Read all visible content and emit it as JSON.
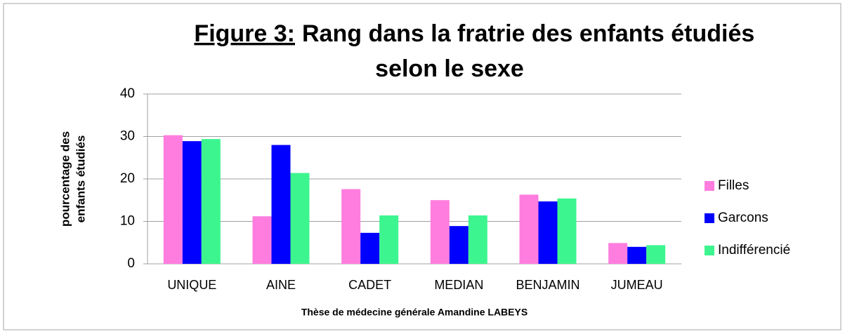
{
  "chart_data": {
    "type": "bar",
    "title_label": "Figure 3:",
    "title": [
      "Rang dans la fratrie des enfants étudiés",
      "selon le sexe"
    ],
    "y_label": [
      "pourcentage des",
      "enfants étudiés"
    ],
    "x_label": "Thèse de médecine générale Amandine LABEYS",
    "categories": [
      "UNIQUE",
      "AINE",
      "CADET",
      "MEDIAN",
      "BENJAMIN",
      "JUMEAU"
    ],
    "series": [
      {
        "name": "Filles",
        "color": "#ff7ddf",
        "values": [
          30.3,
          11.2,
          17.6,
          15.0,
          16.3,
          4.9
        ]
      },
      {
        "name": "Garcons",
        "color": "#0000ff",
        "values": [
          28.9,
          28.0,
          7.3,
          8.9,
          14.7,
          4.0
        ]
      },
      {
        "name": "Indifférencié",
        "color": "#3df58f",
        "values": [
          29.4,
          21.4,
          11.4,
          11.4,
          15.4,
          4.4
        ]
      }
    ],
    "ylim": [
      0,
      40
    ],
    "yticks": [
      0,
      10,
      20,
      30,
      40
    ],
    "grid": true,
    "legend": "right"
  }
}
